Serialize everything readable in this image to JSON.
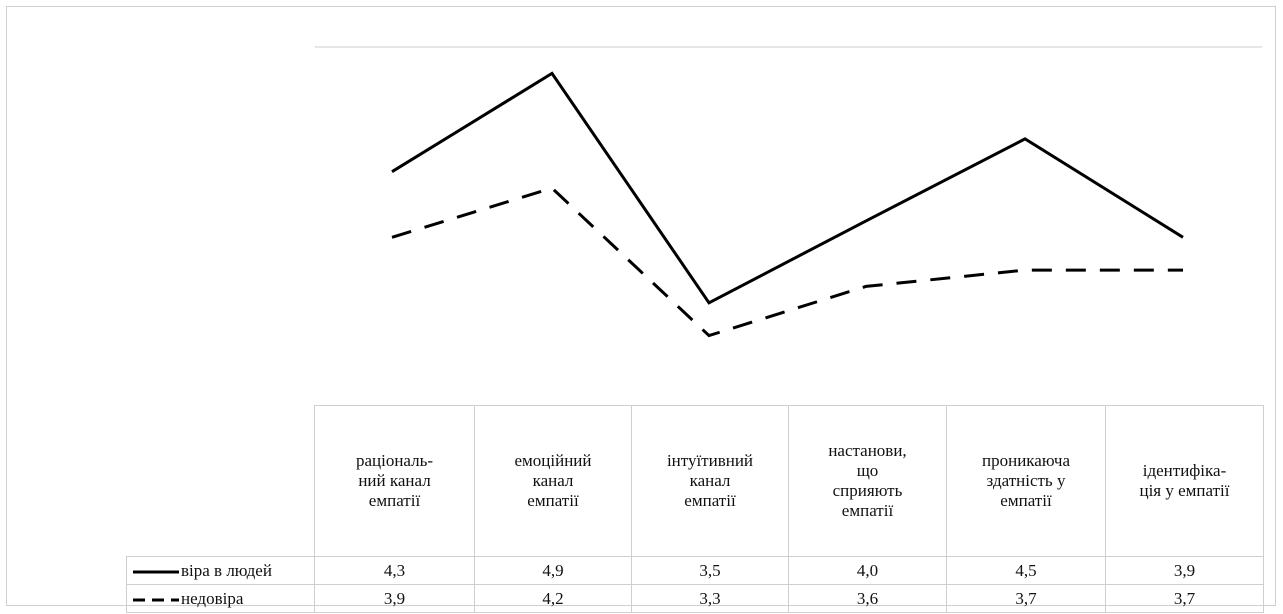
{
  "chart_data": {
    "type": "line",
    "categories": [
      "раціональ-\nний канал\nемпатії",
      "емоційний\nканал\nемпатії",
      "інтуїтивний\nканал\nемпатії",
      "настанови,\nщо\nсприяють\nемпатії",
      "проникаюча\nздатність у\nемпатії",
      "ідентифіка-\nція у емпатії"
    ],
    "series": [
      {
        "name": "віра в людей",
        "values": [
          "4,3",
          "4,9",
          "3,5",
          "4,0",
          "4,5",
          "3,9"
        ],
        "style": "solid",
        "color": "#000000"
      },
      {
        "name": "недовіра",
        "values": [
          "3,9",
          "4,2",
          "3,3",
          "3,6",
          "3,7",
          "3,7"
        ],
        "style": "dashed",
        "color": "#000000"
      }
    ],
    "ylim": [
      3.2,
      5.0
    ],
    "grid": false,
    "legend": "data-table-left"
  }
}
